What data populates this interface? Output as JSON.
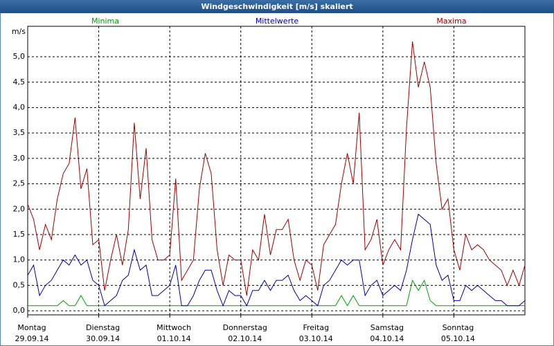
{
  "chart_data": {
    "type": "line",
    "title": "Windgeschwindigkeit [m/s] skaliert",
    "y_label": "m/s",
    "x": [
      0,
      2,
      4,
      6,
      8,
      10,
      12,
      14,
      16,
      18,
      20,
      22,
      24,
      26,
      28,
      30,
      32,
      34,
      36,
      38,
      40,
      42,
      44,
      46,
      48,
      50,
      52,
      54,
      56,
      58,
      60,
      62,
      64,
      66,
      68,
      70,
      72,
      74,
      76,
      78,
      80,
      82,
      84,
      86,
      88,
      90,
      92,
      94,
      96,
      98,
      100,
      102,
      104,
      106,
      108,
      110,
      112,
      114,
      116,
      118,
      120,
      122,
      124,
      126,
      128,
      130,
      132,
      134,
      136,
      138,
      140,
      142,
      144,
      146,
      148,
      150,
      152,
      154,
      156,
      158,
      160,
      162,
      164,
      166,
      168
    ],
    "series": [
      {
        "name": "Minima",
        "color": "#00a000",
        "values": [
          0.1,
          0.1,
          0.1,
          0.1,
          0.1,
          0.1,
          0.2,
          0.1,
          0.1,
          0.3,
          0.1,
          0.1,
          0.1,
          0.1,
          0.1,
          0.1,
          0.1,
          0.1,
          0.1,
          0.1,
          0.1,
          0.1,
          0.1,
          0.1,
          0.1,
          0.1,
          0.1,
          0.1,
          0.1,
          0.1,
          0.1,
          0.1,
          0.1,
          0.1,
          0.1,
          0.1,
          0.1,
          0.1,
          0.1,
          0.1,
          0.1,
          0.1,
          0.1,
          0.1,
          0.1,
          0.1,
          0.1,
          0.1,
          0.1,
          0.1,
          0.1,
          0.1,
          0.1,
          0.3,
          0.1,
          0.3,
          0.1,
          0.1,
          0.1,
          0.1,
          0.1,
          0.1,
          0.1,
          0.1,
          0.1,
          0.6,
          0.4,
          0.6,
          0.2,
          0.1,
          0.1,
          0.1,
          0.1,
          0.1,
          0.1,
          0.1,
          0.1,
          0.1,
          0.1,
          0.1,
          0.1,
          0.1,
          0.1,
          0.1,
          0.1
        ]
      },
      {
        "name": "Mittelwerte",
        "color": "#0000a0",
        "values": [
          0.7,
          0.9,
          0.3,
          0.5,
          0.6,
          0.8,
          1.0,
          0.9,
          1.1,
          0.9,
          1.0,
          0.6,
          0.5,
          0.1,
          0.2,
          0.3,
          0.6,
          0.7,
          1.2,
          0.8,
          0.9,
          0.3,
          0.3,
          0.4,
          0.5,
          0.9,
          0.1,
          0.1,
          0.3,
          0.6,
          0.8,
          0.8,
          0.4,
          0.1,
          0.4,
          0.3,
          0.3,
          0.1,
          0.4,
          0.4,
          0.6,
          0.4,
          0.6,
          0.6,
          0.7,
          0.4,
          0.2,
          0.3,
          0.2,
          0.1,
          0.5,
          0.6,
          0.8,
          1.0,
          0.9,
          1.0,
          1.0,
          0.3,
          0.5,
          0.6,
          0.3,
          0.4,
          0.5,
          0.4,
          0.8,
          1.4,
          1.9,
          1.8,
          1.7,
          0.9,
          0.6,
          0.7,
          0.2,
          0.2,
          0.5,
          0.4,
          0.5,
          0.4,
          0.3,
          0.2,
          0.2,
          0.1,
          0.1,
          0.1,
          0.2
        ]
      },
      {
        "name": "Maxima",
        "color": "#a00000",
        "values": [
          2.1,
          1.8,
          1.2,
          1.7,
          1.4,
          2.2,
          2.7,
          2.9,
          3.8,
          2.4,
          2.8,
          1.3,
          1.4,
          0.4,
          1.0,
          1.5,
          0.9,
          1.6,
          3.7,
          2.2,
          3.2,
          1.4,
          1.0,
          1.0,
          1.1,
          2.6,
          0.6,
          0.8,
          1.0,
          2.4,
          3.1,
          2.7,
          1.2,
          0.5,
          1.1,
          1.0,
          1.0,
          0.3,
          1.2,
          1.0,
          1.9,
          1.1,
          1.6,
          1.6,
          1.8,
          1.0,
          0.6,
          1.0,
          0.9,
          0.4,
          1.3,
          1.5,
          1.7,
          2.5,
          3.1,
          2.5,
          3.9,
          1.2,
          1.4,
          1.8,
          0.9,
          1.2,
          1.4,
          1.2,
          3.6,
          5.3,
          4.4,
          4.9,
          4.4,
          2.9,
          2.0,
          2.2,
          1.2,
          0.8,
          1.5,
          1.2,
          1.3,
          1.2,
          1.0,
          0.9,
          0.8,
          0.5,
          0.8,
          0.5,
          0.9
        ]
      }
    ],
    "xlim": [
      0,
      168
    ],
    "xticks": [
      {
        "value": 0,
        "label": "Montag",
        "date": "29.09.14"
      },
      {
        "value": 24,
        "label": "Dienstag",
        "date": "30.09.14"
      },
      {
        "value": 48,
        "label": "Mittwoch",
        "date": "01.10.14"
      },
      {
        "value": 72,
        "label": "Donnerstag",
        "date": "02.10.14"
      },
      {
        "value": 96,
        "label": "Freitag",
        "date": "03.10.14"
      },
      {
        "value": 120,
        "label": "Samstag",
        "date": "04.10.14"
      },
      {
        "value": 144,
        "label": "Sonntag",
        "date": "05.10.14"
      }
    ],
    "ylim": [
      -0.08,
      5.6
    ],
    "yticks": [
      {
        "value": 0,
        "label": "0,0"
      },
      {
        "value": 0.5,
        "label": "0,5"
      },
      {
        "value": 1,
        "label": "1,0"
      },
      {
        "value": 1.5,
        "label": "1,5"
      },
      {
        "value": 2,
        "label": "2,0"
      },
      {
        "value": 2.5,
        "label": "2,5"
      },
      {
        "value": 3,
        "label": "3,0"
      },
      {
        "value": 3.5,
        "label": "3,5"
      },
      {
        "value": 4,
        "label": "4,0"
      },
      {
        "value": 4.5,
        "label": "4,5"
      },
      {
        "value": 5,
        "label": "5,0"
      }
    ],
    "grid": true
  }
}
